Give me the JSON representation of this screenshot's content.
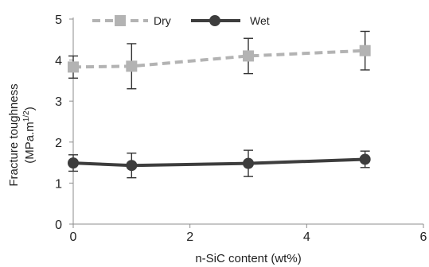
{
  "chart_data": {
    "type": "line",
    "xlabel": "n-SiC content (wt%)",
    "ylabel": "Fracture toughness",
    "ylabel_unit_prefix": "(MPa.m",
    "ylabel_unit_exponent": "1/2",
    "ylabel_unit_suffix": ")",
    "xlim": [
      0,
      6
    ],
    "ylim": [
      0,
      5
    ],
    "xticks": [
      "0",
      "2",
      "4",
      "6"
    ],
    "yticks": [
      "0",
      "1",
      "2",
      "3",
      "4",
      "5"
    ],
    "grid": false,
    "legend_position": "top-left",
    "series": [
      {
        "name": "Dry",
        "color": "#b3b3b3",
        "line_style": "dashed",
        "marker": "square",
        "x": [
          0,
          1,
          3,
          5
        ],
        "y": [
          3.83,
          3.85,
          4.1,
          4.23
        ],
        "err": [
          0.27,
          0.55,
          0.43,
          0.47
        ]
      },
      {
        "name": "Wet",
        "color": "#3d3d3d",
        "line_style": "solid",
        "marker": "circle",
        "x": [
          0,
          1,
          3,
          5
        ],
        "y": [
          1.49,
          1.43,
          1.48,
          1.58
        ],
        "err": [
          0.2,
          0.3,
          0.32,
          0.2
        ]
      }
    ]
  }
}
